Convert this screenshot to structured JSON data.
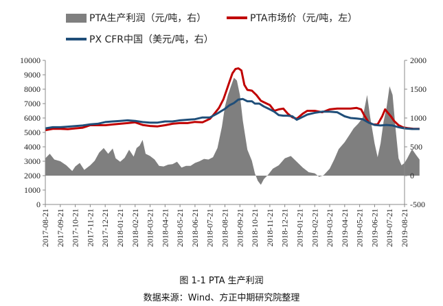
{
  "caption": {
    "title": "图 1-1 PTA 生产利润",
    "source": "数据来源：Wind、方正中期研究院整理"
  },
  "colors": {
    "profit": "#7f7f7f",
    "pta": "#c00000",
    "px": "#1f4e79",
    "axis": "#888888"
  },
  "chart_data": {
    "type": "line",
    "legend": [
      {
        "key": "profit",
        "label": "PTA生产利润（元/吨，右）",
        "style": "area"
      },
      {
        "key": "pta",
        "label": "PTA市场价（元/吨，左）",
        "style": "line"
      },
      {
        "key": "px",
        "label": "PX CFR中国（美元/吨，右）",
        "style": "line"
      }
    ],
    "legend_position": "top",
    "left_axis": {
      "min": 0,
      "max": 10000,
      "ticks": [
        0,
        1000,
        2000,
        3000,
        4000,
        5000,
        6000,
        7000,
        8000,
        9000,
        10000
      ]
    },
    "right_axis": {
      "min": -500,
      "max": 2000,
      "ticks": [
        -500,
        0,
        500,
        1000,
        1500,
        2000
      ]
    },
    "x_labels": [
      "2017-08-21",
      "2017-09-21",
      "2017-10-21",
      "2017-11-21",
      "2017-12-21",
      "2018-01-21",
      "2018-02-21",
      "2018-03-21",
      "2018-04-21",
      "2018-05-21",
      "2018-06-21",
      "2018-07-21",
      "2018-08-21",
      "2018-09-21",
      "2018-10-21",
      "2018-11-21",
      "2018-12-21",
      "2019-01-21",
      "2019-02-21",
      "2019-03-21",
      "2019-04-21",
      "2019-05-21",
      "2019-06-21",
      "2019-07-21",
      "2019-08-21"
    ],
    "series": [
      {
        "key": "profit",
        "axis": "right",
        "points": [
          [
            0,
            300
          ],
          [
            0.3,
            380
          ],
          [
            0.6,
            280
          ],
          [
            1.0,
            250
          ],
          [
            1.4,
            180
          ],
          [
            1.8,
            80
          ],
          [
            2.0,
            160
          ],
          [
            2.3,
            220
          ],
          [
            2.6,
            100
          ],
          [
            3.0,
            180
          ],
          [
            3.3,
            260
          ],
          [
            3.6,
            400
          ],
          [
            3.9,
            480
          ],
          [
            4.2,
            380
          ],
          [
            4.5,
            470
          ],
          [
            4.7,
            300
          ],
          [
            5.0,
            240
          ],
          [
            5.3,
            310
          ],
          [
            5.6,
            450
          ],
          [
            5.9,
            330
          ],
          [
            6.1,
            480
          ],
          [
            6.3,
            520
          ],
          [
            6.5,
            620
          ],
          [
            6.7,
            380
          ],
          [
            7.0,
            340
          ],
          [
            7.3,
            280
          ],
          [
            7.6,
            170
          ],
          [
            7.9,
            160
          ],
          [
            8.2,
            190
          ],
          [
            8.5,
            200
          ],
          [
            8.8,
            240
          ],
          [
            9.1,
            140
          ],
          [
            9.4,
            170
          ],
          [
            9.7,
            170
          ],
          [
            10.0,
            220
          ],
          [
            10.3,
            250
          ],
          [
            10.6,
            290
          ],
          [
            10.9,
            280
          ],
          [
            11.2,
            320
          ],
          [
            11.5,
            480
          ],
          [
            11.8,
            850
          ],
          [
            12.0,
            1200
          ],
          [
            12.2,
            1400
          ],
          [
            12.4,
            1550
          ],
          [
            12.6,
            1700
          ],
          [
            12.8,
            1650
          ],
          [
            13.0,
            1400
          ],
          [
            13.2,
            950
          ],
          [
            13.5,
            450
          ],
          [
            13.8,
            260
          ],
          [
            14.0,
            40
          ],
          [
            14.2,
            -90
          ],
          [
            14.4,
            -160
          ],
          [
            14.6,
            -60
          ],
          [
            14.9,
            20
          ],
          [
            15.2,
            120
          ],
          [
            15.6,
            180
          ],
          [
            16.0,
            300
          ],
          [
            16.4,
            340
          ],
          [
            16.8,
            240
          ],
          [
            17.2,
            140
          ],
          [
            17.6,
            60
          ],
          [
            18.0,
            40
          ],
          [
            18.3,
            -20
          ],
          [
            18.6,
            10
          ],
          [
            19.0,
            120
          ],
          [
            19.3,
            280
          ],
          [
            19.6,
            460
          ],
          [
            20.0,
            580
          ],
          [
            20.3,
            700
          ],
          [
            20.6,
            820
          ],
          [
            20.9,
            900
          ],
          [
            21.2,
            1000
          ],
          [
            21.5,
            1400
          ],
          [
            21.7,
            1020
          ],
          [
            22.0,
            560
          ],
          [
            22.2,
            320
          ],
          [
            22.4,
            560
          ],
          [
            22.6,
            940
          ],
          [
            22.8,
            1180
          ],
          [
            23.0,
            1550
          ],
          [
            23.2,
            1400
          ],
          [
            23.4,
            820
          ],
          [
            23.6,
            300
          ],
          [
            23.8,
            180
          ],
          [
            24.0,
            220
          ],
          [
            24.2,
            310
          ],
          [
            24.5,
            460
          ],
          [
            24.8,
            350
          ],
          [
            25.0,
            280
          ]
        ]
      },
      {
        "key": "pta",
        "axis": "left",
        "points": [
          [
            0,
            5150
          ],
          [
            0.5,
            5250
          ],
          [
            1.0,
            5250
          ],
          [
            1.5,
            5230
          ],
          [
            2.0,
            5280
          ],
          [
            2.5,
            5330
          ],
          [
            3.0,
            5500
          ],
          [
            3.5,
            5500
          ],
          [
            4.0,
            5500
          ],
          [
            4.5,
            5550
          ],
          [
            5.0,
            5600
          ],
          [
            5.5,
            5650
          ],
          [
            6.0,
            5700
          ],
          [
            6.5,
            5520
          ],
          [
            7.0,
            5450
          ],
          [
            7.5,
            5420
          ],
          [
            8.0,
            5500
          ],
          [
            8.5,
            5600
          ],
          [
            9.0,
            5650
          ],
          [
            9.5,
            5650
          ],
          [
            10.0,
            5730
          ],
          [
            10.5,
            5700
          ],
          [
            11.0,
            5950
          ],
          [
            11.3,
            6300
          ],
          [
            11.6,
            6700
          ],
          [
            11.9,
            7300
          ],
          [
            12.1,
            7900
          ],
          [
            12.3,
            8500
          ],
          [
            12.5,
            9100
          ],
          [
            12.7,
            9400
          ],
          [
            12.9,
            9450
          ],
          [
            13.1,
            9300
          ],
          [
            13.3,
            8300
          ],
          [
            13.5,
            7950
          ],
          [
            13.8,
            7900
          ],
          [
            14.1,
            7600
          ],
          [
            14.4,
            7200
          ],
          [
            14.7,
            7050
          ],
          [
            15.0,
            6900
          ],
          [
            15.3,
            6500
          ],
          [
            15.6,
            6600
          ],
          [
            15.9,
            6650
          ],
          [
            16.2,
            6300
          ],
          [
            16.5,
            6050
          ],
          [
            16.8,
            5950
          ],
          [
            17.2,
            6300
          ],
          [
            17.5,
            6500
          ],
          [
            18.0,
            6500
          ],
          [
            18.5,
            6400
          ],
          [
            19.0,
            6600
          ],
          [
            19.5,
            6650
          ],
          [
            20.0,
            6650
          ],
          [
            20.4,
            6650
          ],
          [
            20.8,
            6700
          ],
          [
            21.1,
            6600
          ],
          [
            21.3,
            6200
          ],
          [
            21.6,
            5700
          ],
          [
            21.9,
            5550
          ],
          [
            22.2,
            5550
          ],
          [
            22.5,
            6100
          ],
          [
            22.7,
            6600
          ],
          [
            22.9,
            6350
          ],
          [
            23.1,
            6100
          ],
          [
            23.3,
            5800
          ],
          [
            23.6,
            5500
          ],
          [
            23.9,
            5350
          ],
          [
            24.2,
            5300
          ],
          [
            24.6,
            5250
          ],
          [
            25.0,
            5250
          ]
        ]
      },
      {
        "key": "px",
        "axis": "right",
        "points": [
          [
            0,
            820
          ],
          [
            0.5,
            840
          ],
          [
            1.0,
            840
          ],
          [
            1.5,
            850
          ],
          [
            2.0,
            860
          ],
          [
            2.5,
            870
          ],
          [
            3.0,
            890
          ],
          [
            3.5,
            900
          ],
          [
            4.0,
            930
          ],
          [
            4.5,
            940
          ],
          [
            5.0,
            950
          ],
          [
            5.5,
            960
          ],
          [
            6.0,
            950
          ],
          [
            6.5,
            930
          ],
          [
            7.0,
            920
          ],
          [
            7.5,
            920
          ],
          [
            8.0,
            940
          ],
          [
            8.5,
            940
          ],
          [
            9.0,
            960
          ],
          [
            9.5,
            970
          ],
          [
            10.0,
            980
          ],
          [
            10.5,
            1010
          ],
          [
            11.0,
            1010
          ],
          [
            11.5,
            1080
          ],
          [
            12.0,
            1160
          ],
          [
            12.3,
            1220
          ],
          [
            12.6,
            1260
          ],
          [
            12.9,
            1320
          ],
          [
            13.2,
            1330
          ],
          [
            13.5,
            1290
          ],
          [
            13.8,
            1290
          ],
          [
            14.0,
            1250
          ],
          [
            14.3,
            1250
          ],
          [
            14.6,
            1200
          ],
          [
            15.0,
            1150
          ],
          [
            15.3,
            1110
          ],
          [
            15.6,
            1050
          ],
          [
            15.9,
            1040
          ],
          [
            16.2,
            1040
          ],
          [
            16.5,
            1030
          ],
          [
            16.8,
            970
          ],
          [
            17.2,
            1020
          ],
          [
            17.5,
            1060
          ],
          [
            18.0,
            1090
          ],
          [
            18.5,
            1110
          ],
          [
            19.0,
            1110
          ],
          [
            19.5,
            1100
          ],
          [
            20.0,
            1030
          ],
          [
            20.4,
            1000
          ],
          [
            20.8,
            990
          ],
          [
            21.2,
            980
          ],
          [
            21.6,
            920
          ],
          [
            22.0,
            880
          ],
          [
            22.4,
            870
          ],
          [
            22.8,
            880
          ],
          [
            23.2,
            870
          ],
          [
            23.6,
            840
          ],
          [
            24.0,
            820
          ],
          [
            24.5,
            810
          ],
          [
            25.0,
            810
          ]
        ]
      }
    ]
  }
}
